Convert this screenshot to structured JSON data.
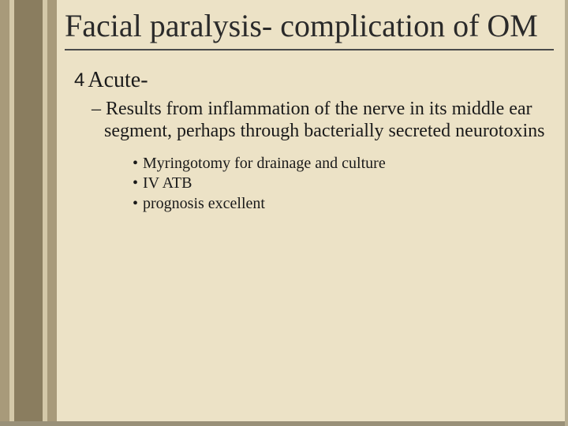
{
  "slide": {
    "title": "Facial paralysis- complication of OM",
    "level1": {
      "bullet": "4",
      "text": "Acute-"
    },
    "level2": {
      "bullet": "–",
      "text": "Results from inflammation of the nerve in its middle ear segment, perhaps through bacterially secreted neurotoxins"
    },
    "level3": [
      {
        "bullet": "•",
        "text": "Myringotomy for drainage and culture"
      },
      {
        "bullet": "•",
        "text": "IV ATB"
      },
      {
        "bullet": "•",
        "text": "prognosis excellent"
      }
    ]
  },
  "colors": {
    "background": "#ece2c6",
    "border_outer": "#a89a7a",
    "border_light": "#d4c8a8",
    "border_dark": "#8a7d5f",
    "text": "#1a1a1a",
    "title_rule": "#4a4a4a"
  }
}
